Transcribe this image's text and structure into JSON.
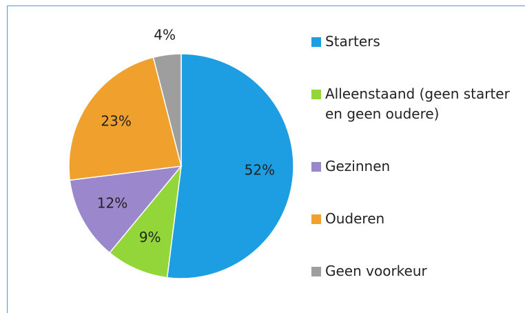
{
  "chart_data": {
    "type": "pie",
    "categories": [
      "Starters",
      "Alleenstaand (geen starter en geen oudere)",
      "Gezinnen",
      "Ouderen",
      "Geen voorkeur"
    ],
    "values": [
      52,
      9,
      12,
      23,
      4
    ],
    "value_labels": [
      "52%",
      "9%",
      "12%",
      "23%",
      "4%"
    ],
    "colors": [
      "#1d9de2",
      "#92d63a",
      "#9a87cc",
      "#f0a02c",
      "#9e9e9e"
    ],
    "legend": "right"
  }
}
